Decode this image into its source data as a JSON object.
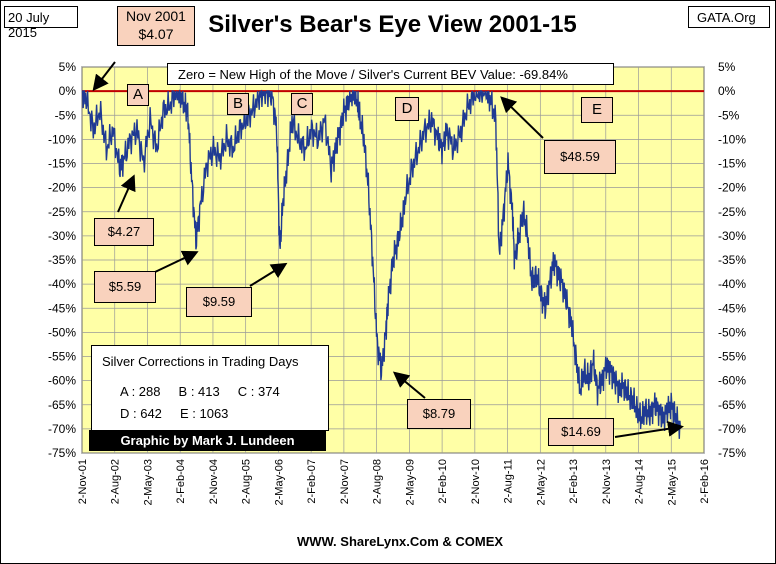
{
  "header": {
    "date": "20 July 2015",
    "title": "Silver's Bear's Eye View 2001-15",
    "source_tag": "GATA.Org",
    "start_box_line1": "Nov 2001",
    "start_box_line2": "$4.07"
  },
  "chart_data": {
    "type": "line",
    "title": "Silver's Bear's Eye View 2001-15",
    "subtitle": "Zero = New High of the Move / Silver's Current BEV Value: -69.84%",
    "xlabel": "WWW. ShareLynx.Com & COMEX",
    "ylabel": "",
    "ylim": [
      -75,
      5
    ],
    "y_ticks": [
      5,
      0,
      -5,
      -10,
      -15,
      -20,
      -25,
      -30,
      -35,
      -40,
      -45,
      -50,
      -55,
      -60,
      -65,
      -70,
      -75
    ],
    "y_tick_labels": [
      "5%",
      "0%",
      "-5%",
      "-10%",
      "-15%",
      "-20%",
      "-25%",
      "-30%",
      "-35%",
      "-40%",
      "-45%",
      "-50%",
      "-55%",
      "-60%",
      "-65%",
      "-70%",
      "-75%"
    ],
    "x_range": [
      2001.84,
      2016.09
    ],
    "x_ticks": [
      2001.84,
      2002.59,
      2003.34,
      2004.09,
      2004.84,
      2005.59,
      2006.34,
      2007.09,
      2007.84,
      2008.59,
      2009.34,
      2010.09,
      2010.84,
      2011.59,
      2012.34,
      2013.09,
      2013.84,
      2014.59,
      2015.34,
      2016.09
    ],
    "x_tick_labels": [
      "2-Nov-01",
      "2-Aug-02",
      "2-May-03",
      "2-Feb-04",
      "2-Nov-04",
      "2-Aug-05",
      "2-May-06",
      "2-Feb-07",
      "2-Nov-07",
      "2-Aug-08",
      "2-May-09",
      "2-Feb-10",
      "2-Nov-10",
      "2-Aug-11",
      "2-May-12",
      "2-Feb-13",
      "2-Nov-13",
      "2-Aug-14",
      "2-May-15",
      "2-Feb-16"
    ],
    "grid": true,
    "reference_line": {
      "y": 0,
      "color": "#c00000"
    },
    "series": [
      {
        "name": "Silver BEV %",
        "color": "#1f3a93",
        "x": [
          2001.84,
          2001.95,
          2002.1,
          2002.25,
          2002.4,
          2002.55,
          2002.7,
          2002.8,
          2002.95,
          2003.1,
          2003.25,
          2003.4,
          2003.55,
          2003.7,
          2003.85,
          2004.0,
          2004.1,
          2004.2,
          2004.27,
          2004.35,
          2004.45,
          2004.55,
          2004.7,
          2004.85,
          2005.0,
          2005.15,
          2005.3,
          2005.45,
          2005.6,
          2005.75,
          2005.9,
          2006.0,
          2006.1,
          2006.2,
          2006.3,
          2006.37,
          2006.45,
          2006.55,
          2006.65,
          2006.8,
          2006.95,
          2007.1,
          2007.25,
          2007.4,
          2007.55,
          2007.65,
          2007.75,
          2007.85,
          2007.95,
          2008.05,
          2008.15,
          2008.2,
          2008.3,
          2008.4,
          2008.5,
          2008.6,
          2008.7,
          2008.8,
          2008.85,
          2008.95,
          2009.05,
          2009.15,
          2009.25,
          2009.4,
          2009.55,
          2009.7,
          2009.85,
          2010.0,
          2010.1,
          2010.2,
          2010.35,
          2010.5,
          2010.65,
          2010.8,
          2010.95,
          2011.1,
          2011.2,
          2011.32,
          2011.4,
          2011.5,
          2011.6,
          2011.7,
          2011.75,
          2011.85,
          2011.95,
          2012.05,
          2012.15,
          2012.25,
          2012.35,
          2012.45,
          2012.55,
          2012.65,
          2012.75,
          2012.85,
          2012.95,
          2013.05,
          2013.15,
          2013.25,
          2013.35,
          2013.45,
          2013.55,
          2013.65,
          2013.75,
          2013.85,
          2013.95,
          2014.05,
          2014.15,
          2014.25,
          2014.35,
          2014.45,
          2014.55,
          2014.65,
          2014.75,
          2014.85,
          2014.95,
          2015.05,
          2015.15,
          2015.25,
          2015.35,
          2015.45,
          2015.55
        ],
        "y": [
          0,
          -2,
          -8,
          -4,
          -12,
          -8,
          -16,
          -14,
          -10,
          -8,
          -15,
          -6,
          -12,
          -4,
          -3,
          0,
          -1,
          -3,
          -5,
          -18,
          -31,
          -24,
          -15,
          -12,
          -14,
          -10,
          -12,
          -8,
          -6,
          -4,
          -1,
          0,
          0,
          -1,
          -8,
          -33,
          -22,
          -15,
          -6,
          -10,
          -12,
          -8,
          -10,
          -6,
          -16,
          -12,
          -8,
          -4,
          -2,
          0,
          -2,
          -5,
          -10,
          -20,
          -35,
          -52,
          -58,
          -50,
          -44,
          -36,
          -32,
          -28,
          -22,
          -16,
          -12,
          -8,
          -6,
          -10,
          -12,
          -8,
          -12,
          -9,
          -4,
          -1,
          0,
          0,
          -2,
          -6,
          -34,
          -25,
          -15,
          -25,
          -35,
          -30,
          -25,
          -30,
          -40,
          -38,
          -42,
          -45,
          -40,
          -35,
          -38,
          -40,
          -44,
          -48,
          -55,
          -62,
          -58,
          -60,
          -56,
          -62,
          -60,
          -57,
          -58,
          -60,
          -62,
          -61,
          -63,
          -64,
          -66,
          -68,
          -66,
          -67,
          -65,
          -66,
          -68,
          -66,
          -65,
          -68,
          -69.84
        ]
      }
    ],
    "series_color_hex": "#1f3a93",
    "plot_background": "#ffffa6",
    "callouts": [
      {
        "label": "$4.27",
        "price": 4.27
      },
      {
        "label": "$5.59",
        "price": 5.59
      },
      {
        "label": "$9.59",
        "price": 9.59
      },
      {
        "label": "$8.79",
        "price": 8.79
      },
      {
        "label": "$48.59",
        "price": 48.59
      },
      {
        "label": "$14.69",
        "price": 14.69
      }
    ],
    "corrections": [
      {
        "label": "A",
        "days": 288
      },
      {
        "label": "B",
        "days": 413
      },
      {
        "label": "C",
        "days": 374
      },
      {
        "label": "D",
        "days": 642
      },
      {
        "label": "E",
        "days": 1063
      }
    ]
  },
  "corrections_box": {
    "title": "Silver Corrections in Trading Days",
    "row1": "A : 288     B : 413     C : 374",
    "row2": "D : 642     E : 1063"
  },
  "credit": "Graphic by Mark J. Lundeen",
  "source": "WWW. ShareLynx.Com & COMEX",
  "subtitle_box": "Zero = New High of the Move / Silver's Current BEV Value: -69.84%"
}
